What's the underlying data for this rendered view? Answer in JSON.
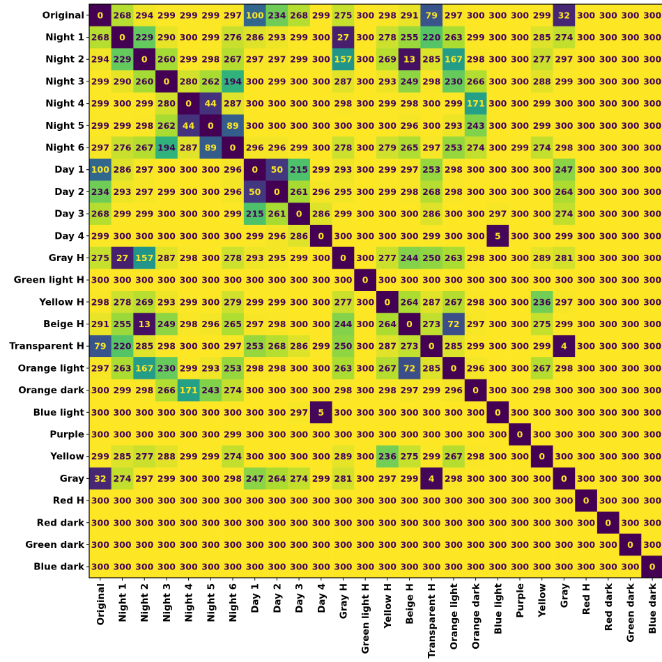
{
  "chart_data": {
    "type": "heatmap",
    "title": "",
    "xlabel": "",
    "ylabel": "",
    "colormap": "viridis",
    "value_range": [
      0,
      300
    ],
    "grid": false,
    "legend": "none",
    "labels": [
      "Original",
      "Night 1",
      "Night 2",
      "Night 3",
      "Night 4",
      "Night 5",
      "Night 6",
      "Day 1",
      "Day 2",
      "Day 3",
      "Day 4",
      "Gray H",
      "Green light H",
      "Yellow H",
      "Beige H",
      "Transparent H",
      "Orange light",
      "Orange dark",
      "Blue light",
      "Purple",
      "Yellow",
      "Gray",
      "Red H",
      "Red dark",
      "Green dark",
      "Blue dark"
    ],
    "matrix": [
      [
        0,
        268,
        294,
        299,
        299,
        299,
        297,
        100,
        234,
        268,
        299,
        275,
        300,
        298,
        291,
        79,
        297,
        300,
        300,
        300,
        299,
        32,
        300,
        300,
        300,
        300
      ],
      [
        268,
        0,
        229,
        290,
        300,
        299,
        276,
        286,
        293,
        299,
        300,
        27,
        300,
        278,
        255,
        220,
        263,
        299,
        300,
        300,
        285,
        274,
        300,
        300,
        300,
        300
      ],
      [
        294,
        229,
        0,
        260,
        299,
        298,
        267,
        297,
        297,
        299,
        300,
        157,
        300,
        269,
        13,
        285,
        167,
        298,
        300,
        300,
        277,
        297,
        300,
        300,
        300,
        300
      ],
      [
        299,
        290,
        260,
        0,
        280,
        262,
        194,
        300,
        299,
        300,
        300,
        287,
        300,
        293,
        249,
        298,
        230,
        266,
        300,
        300,
        288,
        299,
        300,
        300,
        300,
        300
      ],
      [
        299,
        300,
        299,
        280,
        0,
        44,
        287,
        300,
        300,
        300,
        300,
        298,
        300,
        299,
        298,
        300,
        299,
        171,
        300,
        300,
        299,
        300,
        300,
        300,
        300,
        300
      ],
      [
        299,
        299,
        298,
        262,
        44,
        0,
        89,
        300,
        300,
        300,
        300,
        300,
        300,
        300,
        296,
        300,
        293,
        243,
        300,
        300,
        299,
        300,
        300,
        300,
        300,
        300
      ],
      [
        297,
        276,
        267,
        194,
        287,
        89,
        0,
        296,
        296,
        299,
        300,
        278,
        300,
        279,
        265,
        297,
        253,
        274,
        300,
        299,
        274,
        298,
        300,
        300,
        300,
        300
      ],
      [
        100,
        286,
        297,
        300,
        300,
        300,
        296,
        0,
        50,
        215,
        299,
        293,
        300,
        299,
        297,
        253,
        298,
        300,
        300,
        300,
        300,
        247,
        300,
        300,
        300,
        300
      ],
      [
        234,
        293,
        297,
        299,
        300,
        300,
        296,
        50,
        0,
        261,
        296,
        295,
        300,
        299,
        298,
        268,
        298,
        300,
        300,
        300,
        300,
        264,
        300,
        300,
        300,
        300
      ],
      [
        268,
        299,
        299,
        300,
        300,
        300,
        299,
        215,
        261,
        0,
        286,
        299,
        300,
        300,
        300,
        286,
        300,
        300,
        297,
        300,
        300,
        274,
        300,
        300,
        300,
        300
      ],
      [
        299,
        300,
        300,
        300,
        300,
        300,
        300,
        299,
        296,
        286,
        0,
        300,
        300,
        300,
        300,
        299,
        300,
        300,
        5,
        300,
        300,
        299,
        300,
        300,
        300,
        300
      ],
      [
        275,
        27,
        157,
        287,
        298,
        300,
        278,
        293,
        295,
        299,
        300,
        0,
        300,
        277,
        244,
        250,
        263,
        298,
        300,
        300,
        289,
        281,
        300,
        300,
        300,
        300
      ],
      [
        300,
        300,
        300,
        300,
        300,
        300,
        300,
        300,
        300,
        300,
        300,
        300,
        0,
        300,
        300,
        300,
        300,
        300,
        300,
        300,
        300,
        300,
        300,
        300,
        300,
        300
      ],
      [
        298,
        278,
        269,
        293,
        299,
        300,
        279,
        299,
        299,
        300,
        300,
        277,
        300,
        0,
        264,
        287,
        267,
        298,
        300,
        300,
        236,
        297,
        300,
        300,
        300,
        300
      ],
      [
        291,
        255,
        13,
        249,
        298,
        296,
        265,
        297,
        298,
        300,
        300,
        244,
        300,
        264,
        0,
        273,
        72,
        297,
        300,
        300,
        275,
        299,
        300,
        300,
        300,
        300
      ],
      [
        79,
        220,
        285,
        298,
        300,
        300,
        297,
        253,
        268,
        286,
        299,
        250,
        300,
        287,
        273,
        0,
        285,
        299,
        300,
        300,
        299,
        4,
        300,
        300,
        300,
        300
      ],
      [
        297,
        263,
        167,
        230,
        299,
        293,
        253,
        298,
        298,
        300,
        300,
        263,
        300,
        267,
        72,
        285,
        0,
        296,
        300,
        300,
        267,
        298,
        300,
        300,
        300,
        300
      ],
      [
        300,
        299,
        298,
        266,
        171,
        243,
        274,
        300,
        300,
        300,
        300,
        298,
        300,
        298,
        297,
        299,
        296,
        0,
        300,
        300,
        298,
        300,
        300,
        300,
        300,
        300
      ],
      [
        300,
        300,
        300,
        300,
        300,
        300,
        300,
        300,
        300,
        297,
        5,
        300,
        300,
        300,
        300,
        300,
        300,
        300,
        0,
        300,
        300,
        300,
        300,
        300,
        300,
        300
      ],
      [
        300,
        300,
        300,
        300,
        300,
        300,
        299,
        300,
        300,
        300,
        300,
        300,
        300,
        300,
        300,
        300,
        300,
        300,
        300,
        0,
        300,
        300,
        300,
        300,
        300,
        300
      ],
      [
        299,
        285,
        277,
        288,
        299,
        299,
        274,
        300,
        300,
        300,
        300,
        289,
        300,
        236,
        275,
        299,
        267,
        298,
        300,
        300,
        0,
        300,
        300,
        300,
        300,
        300
      ],
      [
        32,
        274,
        297,
        299,
        300,
        300,
        298,
        247,
        264,
        274,
        299,
        281,
        300,
        297,
        299,
        4,
        298,
        300,
        300,
        300,
        300,
        0,
        300,
        300,
        300,
        300
      ],
      [
        300,
        300,
        300,
        300,
        300,
        300,
        300,
        300,
        300,
        300,
        300,
        300,
        300,
        300,
        300,
        300,
        300,
        300,
        300,
        300,
        300,
        300,
        0,
        300,
        300,
        300
      ],
      [
        300,
        300,
        300,
        300,
        300,
        300,
        300,
        300,
        300,
        300,
        300,
        300,
        300,
        300,
        300,
        300,
        300,
        300,
        300,
        300,
        300,
        300,
        300,
        0,
        300,
        300
      ],
      [
        300,
        300,
        300,
        300,
        300,
        300,
        300,
        300,
        300,
        300,
        300,
        300,
        300,
        300,
        300,
        300,
        300,
        300,
        300,
        300,
        300,
        300,
        300,
        300,
        0,
        300
      ],
      [
        300,
        300,
        300,
        300,
        300,
        300,
        300,
        300,
        300,
        300,
        300,
        300,
        300,
        300,
        300,
        300,
        300,
        300,
        300,
        300,
        300,
        300,
        300,
        300,
        300,
        0
      ]
    ]
  }
}
